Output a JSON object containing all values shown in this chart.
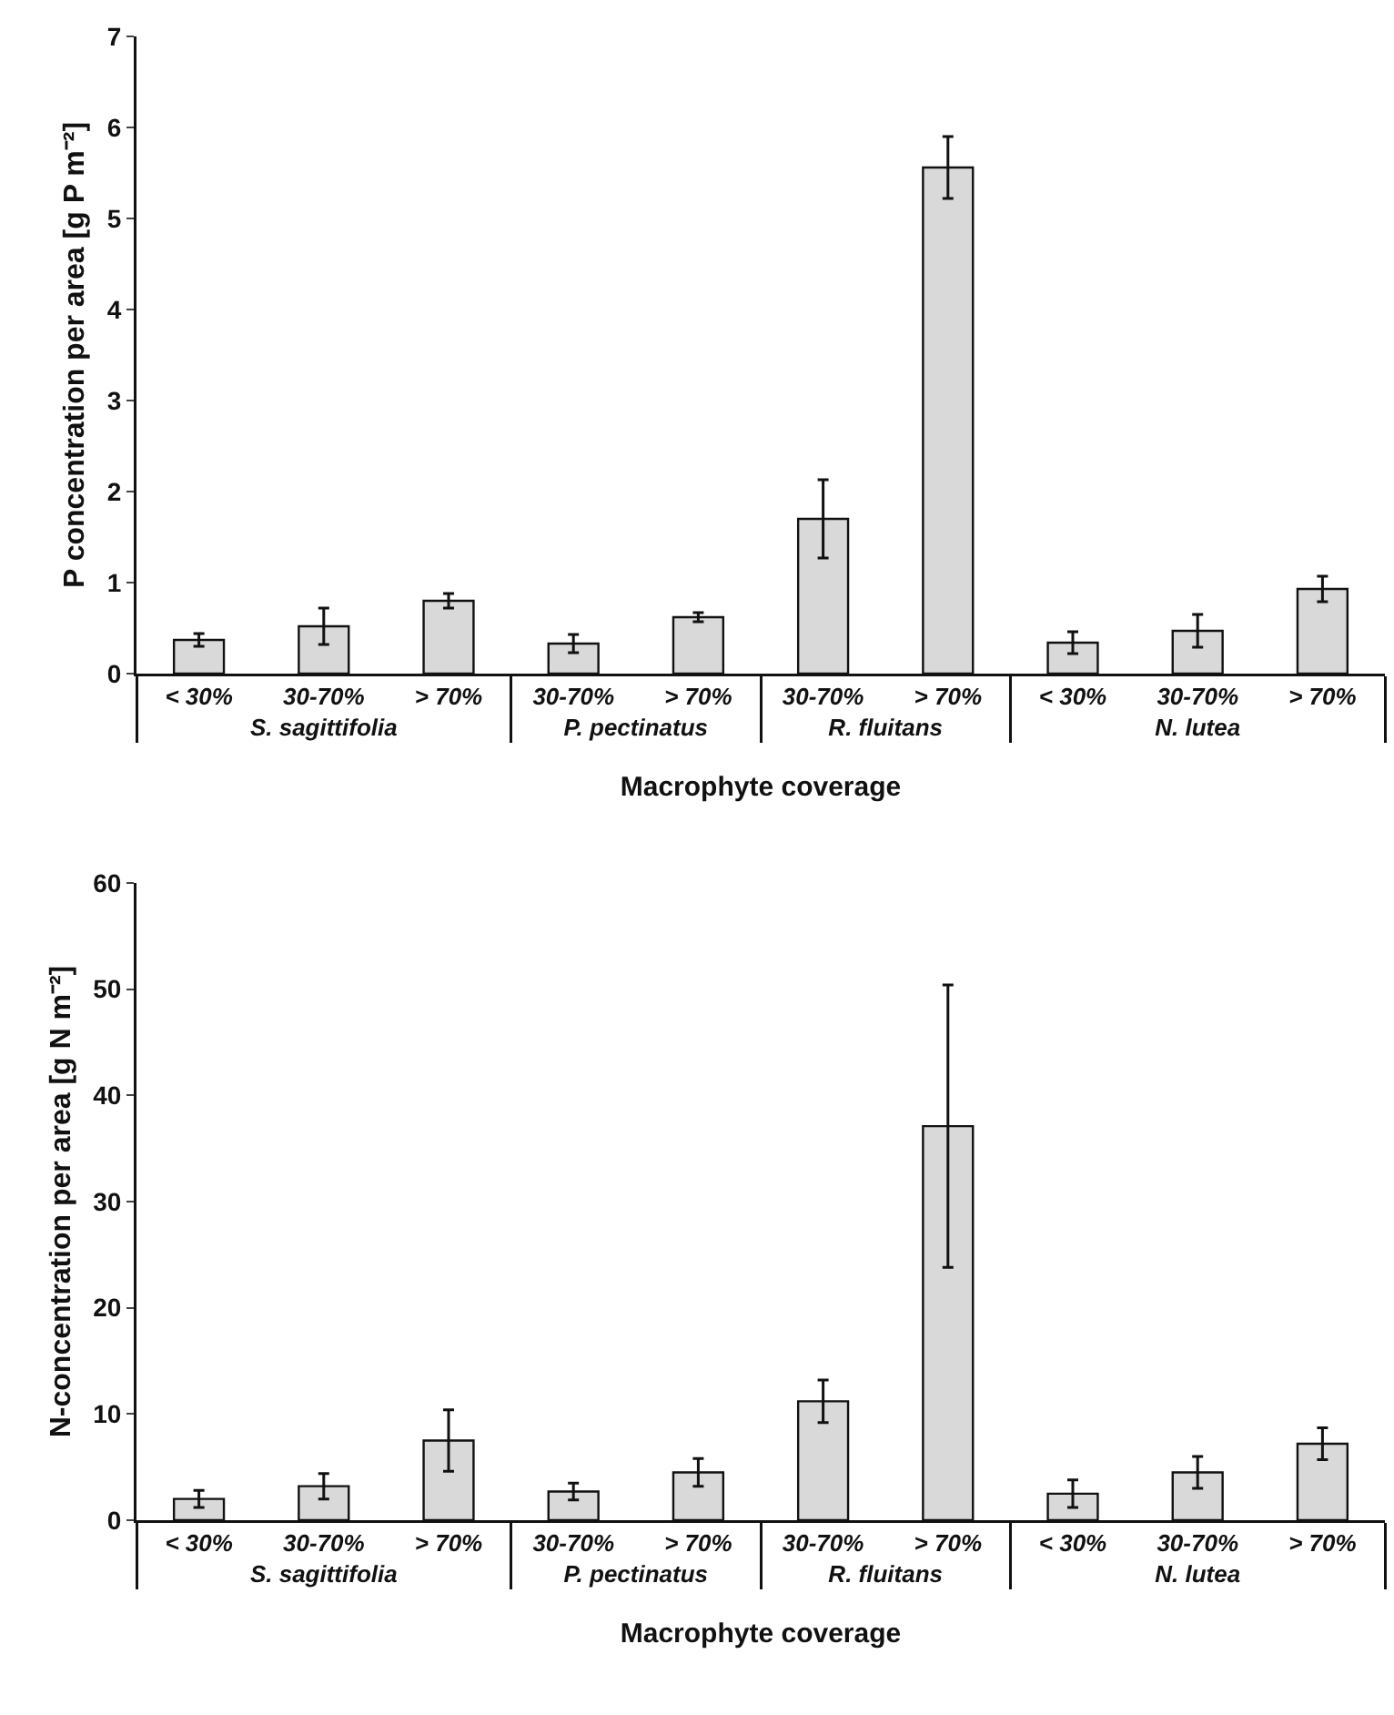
{
  "chart_data": [
    {
      "type": "bar",
      "ylabel": "P concentration per area [g P m⁻²]",
      "xlabel": "Macrophyte coverage",
      "categories": [
        "< 30%",
        "30-70%",
        "> 70%",
        "30-70%",
        "> 70%",
        "30-70%",
        "> 70%",
        "< 30%",
        "30-70%",
        "> 70%"
      ],
      "values": [
        0.37,
        0.52,
        0.8,
        0.33,
        0.62,
        1.7,
        5.56,
        0.34,
        0.47,
        0.93
      ],
      "errors": [
        0.07,
        0.2,
        0.08,
        0.1,
        0.05,
        0.43,
        0.34,
        0.12,
        0.18,
        0.14
      ],
      "color": "#d9d9d9",
      "ylim": [
        0,
        7
      ],
      "yticks": [
        0,
        1,
        2,
        3,
        4,
        5,
        6,
        7
      ],
      "grid": false,
      "annotations": [
        "S. sagittifolia",
        "P. pectinatus",
        "R. fluitans",
        "N. lutea"
      ]
    },
    {
      "type": "bar",
      "ylabel": "N-concentration per area [g N m⁻²]",
      "xlabel": "Macrophyte coverage",
      "categories": [
        "< 30%",
        "30-70%",
        "> 70%",
        "30-70%",
        "> 70%",
        "30-70%",
        "> 70%",
        "< 30%",
        "30-70%",
        "> 70%"
      ],
      "values": [
        2.0,
        3.2,
        7.5,
        2.7,
        4.5,
        11.2,
        37.1,
        2.5,
        4.5,
        7.2
      ],
      "errors": [
        0.8,
        1.2,
        2.9,
        0.8,
        1.3,
        2.0,
        13.3,
        1.3,
        1.5,
        1.5
      ],
      "color": "#d9d9d9",
      "ylim": [
        0,
        60
      ],
      "yticks": [
        0,
        10,
        20,
        30,
        40,
        50,
        60
      ],
      "grid": false,
      "annotations": [
        "S. sagittifolia",
        "P. pectinatus",
        "R. fluitans",
        "N. lutea"
      ]
    }
  ]
}
